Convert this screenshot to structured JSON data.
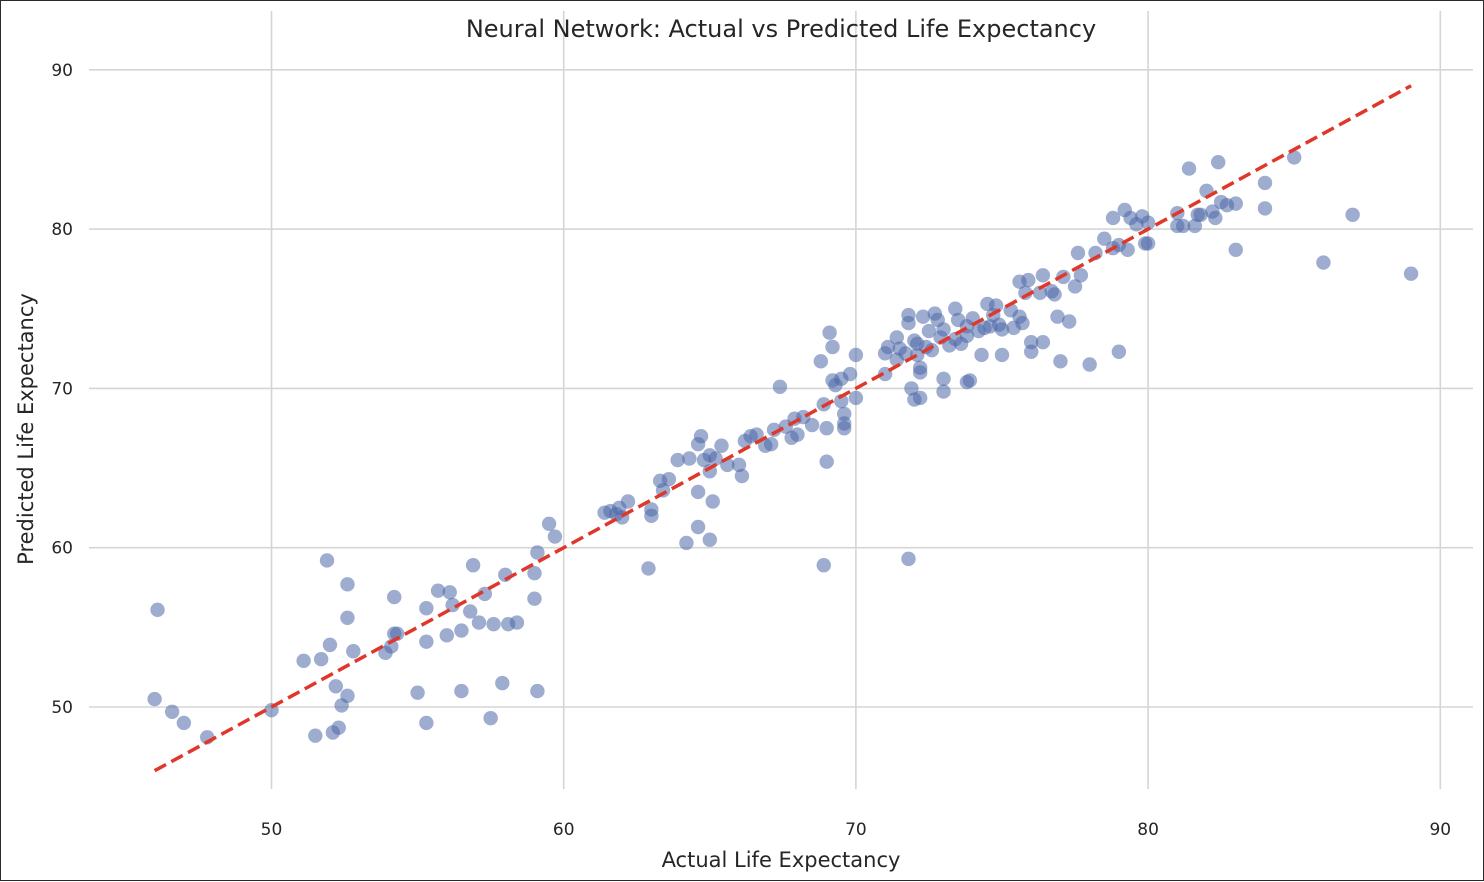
{
  "chart_data": {
    "type": "scatter",
    "title": "Neural Network: Actual vs Predicted Life Expectancy",
    "xlabel": "Actual Life Expectancy",
    "ylabel": "Predicted Life Expectancy",
    "xlim": [
      44,
      91
    ],
    "ylim": [
      44,
      91
    ],
    "xticks": [
      50,
      60,
      70,
      80,
      90
    ],
    "yticks": [
      50,
      60,
      70,
      80,
      90
    ],
    "grid": true,
    "point_color": "#4c68a8",
    "reference_line": {
      "x": [
        46,
        89
      ],
      "y": [
        46,
        89
      ],
      "color": "#e0372b",
      "style": "dashed"
    },
    "points": [
      [
        46.0,
        50.5
      ],
      [
        46.1,
        56.1
      ],
      [
        46.6,
        49.7
      ],
      [
        47.0,
        49.0
      ],
      [
        47.8,
        48.1
      ],
      [
        50.0,
        49.8
      ],
      [
        51.1,
        52.9
      ],
      [
        51.5,
        48.2
      ],
      [
        51.7,
        53.0
      ],
      [
        51.9,
        59.2
      ],
      [
        52.0,
        53.9
      ],
      [
        52.1,
        48.4
      ],
      [
        52.2,
        51.3
      ],
      [
        52.3,
        48.7
      ],
      [
        52.4,
        50.1
      ],
      [
        52.6,
        57.7
      ],
      [
        52.6,
        55.6
      ],
      [
        52.6,
        50.7
      ],
      [
        52.8,
        53.5
      ],
      [
        53.9,
        53.4
      ],
      [
        54.1,
        53.8
      ],
      [
        54.2,
        56.9
      ],
      [
        54.2,
        54.6
      ],
      [
        54.3,
        54.6
      ],
      [
        55.0,
        50.9
      ],
      [
        55.3,
        56.2
      ],
      [
        55.3,
        49.0
      ],
      [
        55.3,
        54.1
      ],
      [
        55.7,
        57.3
      ],
      [
        56.0,
        54.5
      ],
      [
        56.1,
        57.2
      ],
      [
        56.2,
        56.4
      ],
      [
        56.5,
        54.8
      ],
      [
        56.5,
        51.0
      ],
      [
        56.8,
        56.0
      ],
      [
        56.9,
        58.9
      ],
      [
        57.1,
        55.3
      ],
      [
        57.3,
        57.1
      ],
      [
        57.5,
        49.3
      ],
      [
        57.6,
        55.2
      ],
      [
        57.9,
        51.5
      ],
      [
        58.0,
        58.3
      ],
      [
        58.1,
        55.2
      ],
      [
        58.4,
        55.3
      ],
      [
        59.0,
        56.8
      ],
      [
        59.0,
        58.4
      ],
      [
        59.1,
        59.7
      ],
      [
        59.1,
        51.0
      ],
      [
        59.5,
        61.5
      ],
      [
        59.7,
        60.7
      ],
      [
        61.4,
        62.2
      ],
      [
        61.6,
        62.3
      ],
      [
        61.8,
        62.1
      ],
      [
        61.9,
        62.5
      ],
      [
        62.0,
        61.9
      ],
      [
        62.2,
        62.9
      ],
      [
        62.9,
        58.7
      ],
      [
        63.0,
        62.0
      ],
      [
        63.0,
        62.4
      ],
      [
        63.3,
        64.2
      ],
      [
        63.4,
        63.6
      ],
      [
        63.6,
        64.3
      ],
      [
        63.9,
        65.5
      ],
      [
        64.2,
        60.3
      ],
      [
        64.3,
        65.6
      ],
      [
        64.6,
        66.5
      ],
      [
        64.6,
        63.5
      ],
      [
        64.6,
        61.3
      ],
      [
        64.7,
        67.0
      ],
      [
        64.8,
        65.5
      ],
      [
        65.0,
        65.8
      ],
      [
        65.0,
        64.8
      ],
      [
        65.0,
        60.5
      ],
      [
        65.1,
        62.9
      ],
      [
        65.2,
        65.6
      ],
      [
        65.4,
        66.4
      ],
      [
        65.6,
        65.2
      ],
      [
        66.0,
        65.2
      ],
      [
        66.1,
        64.5
      ],
      [
        66.2,
        66.7
      ],
      [
        66.4,
        67.0
      ],
      [
        66.6,
        67.1
      ],
      [
        66.9,
        66.4
      ],
      [
        67.1,
        66.5
      ],
      [
        67.2,
        67.4
      ],
      [
        67.4,
        70.1
      ],
      [
        67.6,
        67.6
      ],
      [
        67.8,
        66.9
      ],
      [
        67.9,
        68.1
      ],
      [
        68.0,
        67.1
      ],
      [
        68.2,
        68.2
      ],
      [
        68.5,
        67.7
      ],
      [
        68.8,
        71.7
      ],
      [
        68.9,
        69.0
      ],
      [
        68.9,
        58.9
      ],
      [
        69.0,
        65.4
      ],
      [
        69.0,
        67.5
      ],
      [
        69.1,
        73.5
      ],
      [
        69.2,
        72.6
      ],
      [
        69.2,
        70.5
      ],
      [
        69.3,
        70.2
      ],
      [
        69.5,
        70.6
      ],
      [
        69.5,
        69.2
      ],
      [
        69.6,
        68.4
      ],
      [
        69.6,
        67.8
      ],
      [
        69.6,
        67.5
      ],
      [
        69.8,
        70.9
      ],
      [
        70.0,
        69.4
      ],
      [
        70.0,
        72.1
      ],
      [
        71.0,
        70.9
      ],
      [
        71.0,
        72.2
      ],
      [
        71.1,
        72.6
      ],
      [
        71.4,
        73.2
      ],
      [
        71.4,
        71.8
      ],
      [
        71.5,
        72.5
      ],
      [
        71.7,
        72.2
      ],
      [
        71.8,
        74.6
      ],
      [
        71.8,
        74.1
      ],
      [
        71.8,
        59.3
      ],
      [
        71.9,
        70.0
      ],
      [
        72.0,
        73.0
      ],
      [
        72.0,
        69.3
      ],
      [
        72.1,
        72.8
      ],
      [
        72.1,
        72.1
      ],
      [
        72.2,
        71.3
      ],
      [
        72.2,
        71.0
      ],
      [
        72.2,
        69.4
      ],
      [
        72.3,
        74.5
      ],
      [
        72.4,
        72.6
      ],
      [
        72.5,
        73.6
      ],
      [
        72.6,
        72.4
      ],
      [
        72.7,
        74.7
      ],
      [
        72.8,
        74.3
      ],
      [
        72.9,
        73.2
      ],
      [
        73.0,
        73.7
      ],
      [
        73.0,
        70.6
      ],
      [
        73.0,
        69.8
      ],
      [
        73.2,
        72.7
      ],
      [
        73.4,
        75.0
      ],
      [
        73.4,
        73.1
      ],
      [
        73.5,
        74.3
      ],
      [
        73.6,
        72.8
      ],
      [
        73.8,
        73.9
      ],
      [
        73.8,
        73.3
      ],
      [
        73.8,
        70.4
      ],
      [
        73.9,
        70.5
      ],
      [
        74.0,
        74.4
      ],
      [
        74.2,
        73.6
      ],
      [
        74.3,
        72.1
      ],
      [
        74.4,
        73.8
      ],
      [
        74.5,
        75.3
      ],
      [
        74.6,
        73.9
      ],
      [
        74.7,
        74.6
      ],
      [
        74.8,
        75.2
      ],
      [
        74.9,
        74.0
      ],
      [
        75.0,
        73.7
      ],
      [
        75.0,
        72.1
      ],
      [
        75.3,
        74.9
      ],
      [
        75.4,
        73.8
      ],
      [
        75.6,
        74.5
      ],
      [
        75.6,
        76.7
      ],
      [
        75.7,
        74.1
      ],
      [
        75.8,
        76.0
      ],
      [
        75.9,
        76.8
      ],
      [
        76.0,
        72.9
      ],
      [
        76.0,
        72.3
      ],
      [
        76.3,
        76.0
      ],
      [
        76.4,
        77.1
      ],
      [
        76.4,
        72.9
      ],
      [
        76.7,
        76.1
      ],
      [
        76.8,
        75.9
      ],
      [
        76.9,
        74.5
      ],
      [
        77.0,
        71.7
      ],
      [
        77.1,
        77.0
      ],
      [
        77.3,
        74.2
      ],
      [
        77.5,
        76.4
      ],
      [
        77.6,
        78.5
      ],
      [
        77.7,
        77.1
      ],
      [
        78.0,
        71.5
      ],
      [
        78.2,
        78.5
      ],
      [
        78.5,
        79.4
      ],
      [
        78.8,
        80.7
      ],
      [
        78.8,
        78.8
      ],
      [
        79.0,
        79.0
      ],
      [
        79.0,
        72.3
      ],
      [
        79.2,
        81.2
      ],
      [
        79.3,
        78.7
      ],
      [
        79.4,
        80.7
      ],
      [
        79.6,
        80.3
      ],
      [
        79.8,
        80.8
      ],
      [
        79.9,
        79.1
      ],
      [
        80.0,
        80.4
      ],
      [
        80.0,
        79.1
      ],
      [
        81.0,
        81.0
      ],
      [
        81.0,
        80.2
      ],
      [
        81.2,
        80.2
      ],
      [
        81.4,
        83.8
      ],
      [
        81.6,
        80.2
      ],
      [
        81.7,
        80.9
      ],
      [
        81.8,
        80.9
      ],
      [
        82.0,
        82.4
      ],
      [
        82.2,
        81.1
      ],
      [
        82.3,
        80.7
      ],
      [
        82.4,
        84.2
      ],
      [
        82.5,
        81.7
      ],
      [
        82.7,
        81.5
      ],
      [
        83.0,
        81.6
      ],
      [
        83.0,
        78.7
      ],
      [
        84.0,
        82.9
      ],
      [
        84.0,
        81.3
      ],
      [
        85.0,
        84.5
      ],
      [
        86.0,
        77.9
      ],
      [
        87.0,
        80.9
      ],
      [
        89.0,
        77.2
      ]
    ]
  }
}
